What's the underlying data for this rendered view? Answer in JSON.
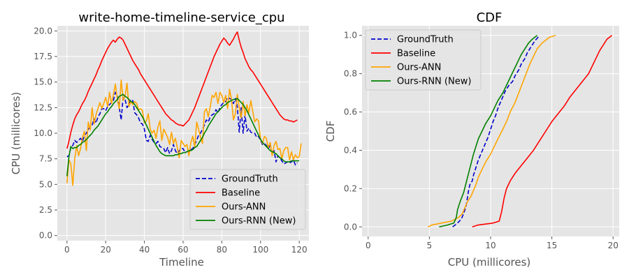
{
  "chart_data": [
    {
      "type": "line",
      "title": "write-home-timeline-service_cpu",
      "xlabel": "Timeline",
      "ylabel": "CPU (millicores)",
      "xlim": [
        -5,
        125
      ],
      "ylim": [
        -0.5,
        20.5
      ],
      "xticks": [
        0,
        20,
        40,
        60,
        80,
        100,
        120
      ],
      "xtick_labels": [
        "0",
        "20",
        "40",
        "60",
        "80",
        "100",
        "120"
      ],
      "yticks": [
        0,
        2.5,
        5,
        7.5,
        10,
        12.5,
        15,
        17.5,
        20
      ],
      "ytick_labels": [
        "0.0",
        "2.5",
        "5.0",
        "7.5",
        "10.0",
        "12.5",
        "15.0",
        "17.5",
        "20.0"
      ],
      "grid": true,
      "legend_position": "lower-right",
      "x_step": 1,
      "series": [
        {
          "name": "GroundTruth",
          "color": "#0000cc",
          "dash": "dashed",
          "values": [
            7.7,
            7.8,
            8.6,
            8.8,
            9.3,
            9.1,
            9.3,
            9.5,
            9.2,
            9.8,
            10.0,
            10.4,
            10.6,
            10.8,
            11.4,
            11.0,
            11.6,
            11.9,
            12.4,
            12.4,
            12.2,
            12.6,
            12.8,
            13.0,
            13.2,
            14.0,
            13.6,
            12.5,
            11.3,
            13.5,
            13.3,
            12.5,
            12.8,
            13.3,
            13.2,
            12.0,
            11.8,
            11.5,
            11.0,
            10.9,
            10.4,
            9.3,
            9.2,
            9.8,
            9.4,
            9.1,
            9.0,
            9.2,
            8.7,
            8.6,
            8.5,
            8.1,
            8.6,
            8.0,
            8.3,
            8.9,
            8.3,
            8.0,
            8.3,
            8.5,
            8.5,
            8.1,
            8.2,
            8.2,
            8.4,
            8.5,
            8.9,
            9.3,
            9.8,
            10.0,
            10.4,
            10.8,
            11.3,
            11.1,
            11.6,
            11.8,
            11.9,
            12.3,
            12.0,
            12.5,
            12.8,
            13.0,
            13.1,
            13.5,
            13.4,
            13.3,
            12.9,
            13.4,
            12.6,
            10.1,
            12.5,
            10.0,
            11.8,
            10.2,
            10.5,
            10.1,
            10.0,
            10.0,
            9.6,
            9.7,
            9.3,
            8.9,
            9.0,
            8.8,
            8.5,
            8.8,
            8.0,
            8.3,
            7.2,
            7.8,
            7.6,
            7.3,
            7.0,
            7.1,
            7.2,
            7.1,
            7.2,
            7.4,
            6.9,
            7.1
          ]
        },
        {
          "name": "Baseline",
          "color": "#ff0000",
          "dash": "solid",
          "values": [
            8.5,
            9.2,
            10.1,
            10.8,
            11.4,
            11.8,
            12.1,
            12.5,
            12.9,
            13.2,
            13.6,
            14.1,
            14.5,
            14.9,
            15.3,
            15.7,
            16.2,
            16.6,
            17.1,
            17.5,
            17.9,
            18.3,
            18.6,
            18.9,
            19.1,
            18.9,
            19.2,
            19.4,
            19.3,
            19.1,
            18.7,
            18.3,
            17.9,
            17.5,
            17.1,
            16.8,
            16.5,
            16.2,
            15.8,
            15.5,
            15.2,
            14.9,
            14.6,
            14.3,
            14.0,
            13.7,
            13.4,
            13.1,
            12.8,
            12.5,
            12.2,
            11.9,
            11.7,
            11.5,
            11.3,
            11.2,
            11.0,
            10.9,
            10.8,
            10.8,
            10.7,
            10.9,
            11.1,
            11.3,
            11.7,
            12.1,
            12.5,
            13.0,
            13.5,
            14.0,
            14.5,
            15.0,
            15.5,
            16.0,
            16.5,
            17.0,
            17.5,
            17.9,
            18.3,
            18.7,
            19.0,
            19.3,
            19.1,
            18.8,
            18.6,
            18.9,
            19.2,
            19.6,
            19.9,
            19.1,
            18.4,
            17.9,
            17.3,
            16.9,
            16.5,
            16.2,
            16.0,
            15.7,
            15.4,
            15.1,
            14.8,
            14.5,
            14.2,
            13.9,
            13.6,
            13.3,
            13.0,
            12.7,
            12.4,
            12.1,
            11.8,
            11.6,
            11.4,
            11.3,
            11.3,
            11.2,
            11.2,
            11.1,
            11.2,
            11.3
          ]
        },
        {
          "name": "Ours-ANN",
          "color": "#ffa500",
          "dash": "solid",
          "values": [
            5.1,
            7.4,
            7.0,
            4.9,
            7.5,
            8.8,
            7.8,
            8.5,
            9.6,
            10.2,
            8.3,
            11.1,
            10.3,
            12.5,
            10.9,
            11.8,
            12.4,
            13.0,
            12.4,
            12.9,
            13.5,
            12.6,
            14.0,
            12.9,
            13.8,
            14.8,
            13.3,
            12.4,
            15.2,
            13.2,
            13.6,
            14.9,
            12.6,
            13.1,
            12.8,
            13.1,
            12.9,
            12.3,
            12.4,
            12.2,
            11.0,
            11.2,
            11.9,
            10.4,
            10.0,
            10.3,
            9.5,
            10.6,
            11.2,
            9.3,
            10.4,
            10.0,
            9.6,
            8.9,
            10.1,
            9.0,
            9.5,
            8.6,
            7.6,
            9.3,
            9.0,
            8.7,
            8.9,
            7.8,
            9.1,
            9.7,
            8.6,
            11.1,
            10.4,
            9.6,
            9.0,
            12.1,
            12.4,
            11.6,
            12.6,
            13.7,
            13.5,
            14.0,
            12.9,
            14.0,
            13.7,
            13.0,
            13.7,
            12.4,
            14.3,
            13.3,
            11.3,
            11.9,
            13.8,
            12.5,
            11.5,
            13.1,
            11.7,
            12.8,
            12.0,
            13.2,
            12.1,
            11.1,
            11.4,
            11.2,
            9.4,
            9.0,
            9.7,
            9.5,
            8.6,
            9.1,
            7.8,
            8.8,
            9.2,
            8.4,
            8.5,
            7.5,
            8.3,
            8.6,
            8.6,
            7.4,
            8.2,
            7.4,
            7.9,
            7.6,
            7.7,
            9.0
          ]
        },
        {
          "name": "Ours-RNN (New)",
          "color": "#008000",
          "dash": "solid",
          "values": [
            5.8,
            7.7,
            8.7,
            8.5,
            8.6,
            8.6,
            8.8,
            8.9,
            9.1,
            9.2,
            9.4,
            9.6,
            9.8,
            10.0,
            10.3,
            10.5,
            10.7,
            11.0,
            11.3,
            11.6,
            11.9,
            12.1,
            12.4,
            12.6,
            12.9,
            13.1,
            13.3,
            13.6,
            13.7,
            13.8,
            13.6,
            13.5,
            13.3,
            13.1,
            13.0,
            12.8,
            12.5,
            12.2,
            11.9,
            11.6,
            11.2,
            10.8,
            10.4,
            10.0,
            9.6,
            9.2,
            8.8,
            8.5,
            8.2,
            8.0,
            7.9,
            7.8,
            7.8,
            7.8,
            7.8,
            7.8,
            7.9,
            7.9,
            8.0,
            8.0,
            8.1,
            8.1,
            8.2,
            8.3,
            8.3,
            8.4,
            8.6,
            8.7,
            9.0,
            9.3,
            9.6,
            10.0,
            10.3,
            10.7,
            11.0,
            11.3,
            11.6,
            11.9,
            12.1,
            12.3,
            12.5,
            12.7,
            12.8,
            13.0,
            13.1,
            13.2,
            13.3,
            13.3,
            13.4,
            13.2,
            13.0,
            12.8,
            12.5,
            12.2,
            11.8,
            11.4,
            11.0,
            10.6,
            10.2,
            9.8,
            9.4,
            9.1,
            8.9,
            8.7,
            8.5,
            8.3,
            8.2,
            8.1,
            8.0,
            7.8,
            7.6,
            7.5,
            7.3,
            7.2,
            7.2,
            7.2,
            7.3,
            7.3,
            7.3,
            7.3,
            7.3
          ]
        }
      ]
    },
    {
      "type": "line",
      "title": "CDF",
      "xlabel": "CPU (millicores)",
      "ylabel": "CDF",
      "xlim": [
        -0.5,
        20.5
      ],
      "ylim": [
        -0.05,
        1.05
      ],
      "xticks": [
        0,
        5,
        10,
        15,
        20
      ],
      "xtick_labels": [
        "0",
        "5",
        "10",
        "15",
        "20"
      ],
      "yticks": [
        0,
        0.2,
        0.4,
        0.6,
        0.8,
        1.0
      ],
      "ytick_labels": [
        "0.0",
        "0.2",
        "0.4",
        "0.6",
        "0.8",
        "1.0"
      ],
      "grid": true,
      "legend_position": "upper-left",
      "series": [
        {
          "name": "GroundTruth",
          "color": "#0000cc",
          "dash": "dashed",
          "x": [
            6.9,
            7.3,
            7.6,
            7.8,
            8.0,
            8.1,
            8.2,
            8.3,
            8.5,
            8.6,
            8.8,
            9.0,
            9.2,
            9.4,
            9.6,
            9.8,
            10.0,
            10.2,
            10.4,
            10.6,
            10.8,
            11.0,
            11.2,
            11.5,
            11.8,
            12.0,
            12.3,
            12.5,
            12.8,
            13.0,
            13.2,
            13.4,
            13.6,
            14.0
          ],
          "y": [
            0.0,
            0.02,
            0.04,
            0.07,
            0.11,
            0.15,
            0.19,
            0.22,
            0.24,
            0.27,
            0.31,
            0.35,
            0.38,
            0.41,
            0.44,
            0.47,
            0.51,
            0.55,
            0.58,
            0.62,
            0.65,
            0.68,
            0.71,
            0.74,
            0.76,
            0.79,
            0.82,
            0.85,
            0.88,
            0.91,
            0.93,
            0.95,
            0.97,
            1.0
          ]
        },
        {
          "name": "Baseline",
          "color": "#ff0000",
          "dash": "solid",
          "x": [
            8.5,
            9.0,
            9.6,
            10.2,
            10.7,
            10.9,
            11.1,
            11.3,
            11.6,
            12.0,
            12.5,
            13.0,
            13.5,
            14.0,
            14.5,
            15.0,
            15.5,
            16.0,
            16.5,
            17.0,
            17.5,
            18.0,
            18.3,
            18.6,
            18.9,
            19.2,
            19.5,
            19.9
          ],
          "y": [
            0.0,
            0.01,
            0.015,
            0.02,
            0.03,
            0.08,
            0.15,
            0.2,
            0.24,
            0.28,
            0.32,
            0.36,
            0.4,
            0.45,
            0.5,
            0.55,
            0.59,
            0.63,
            0.68,
            0.72,
            0.76,
            0.8,
            0.84,
            0.88,
            0.92,
            0.95,
            0.98,
            1.0
          ]
        },
        {
          "name": "Ours-ANN",
          "color": "#ffa500",
          "dash": "solid",
          "x": [
            4.9,
            5.2,
            6.0,
            6.8,
            7.4,
            7.7,
            7.9,
            8.1,
            8.4,
            8.6,
            8.8,
            9.0,
            9.3,
            9.6,
            10.0,
            10.3,
            10.6,
            11.0,
            11.3,
            11.6,
            12.0,
            12.3,
            12.6,
            12.9,
            13.2,
            13.5,
            13.8,
            14.2,
            14.8,
            15.3
          ],
          "y": [
            0.0,
            0.01,
            0.02,
            0.03,
            0.05,
            0.07,
            0.1,
            0.13,
            0.16,
            0.19,
            0.22,
            0.26,
            0.3,
            0.34,
            0.38,
            0.42,
            0.46,
            0.51,
            0.55,
            0.6,
            0.65,
            0.7,
            0.75,
            0.8,
            0.85,
            0.89,
            0.93,
            0.96,
            0.99,
            1.0
          ]
        },
        {
          "name": "Ours-RNN (New)",
          "color": "#008000",
          "dash": "solid",
          "x": [
            5.8,
            6.5,
            7.0,
            7.2,
            7.3,
            7.5,
            7.8,
            8.0,
            8.2,
            8.4,
            8.6,
            8.8,
            9.0,
            9.3,
            9.6,
            10.0,
            10.3,
            10.6,
            11.0,
            11.3,
            11.6,
            11.9,
            12.2,
            12.5,
            12.8,
            13.1,
            13.4,
            13.8
          ],
          "y": [
            0.0,
            0.01,
            0.02,
            0.05,
            0.09,
            0.13,
            0.18,
            0.23,
            0.28,
            0.33,
            0.38,
            0.42,
            0.46,
            0.5,
            0.54,
            0.58,
            0.62,
            0.66,
            0.7,
            0.74,
            0.78,
            0.82,
            0.86,
            0.9,
            0.93,
            0.96,
            0.98,
            1.0
          ]
        }
      ]
    }
  ]
}
